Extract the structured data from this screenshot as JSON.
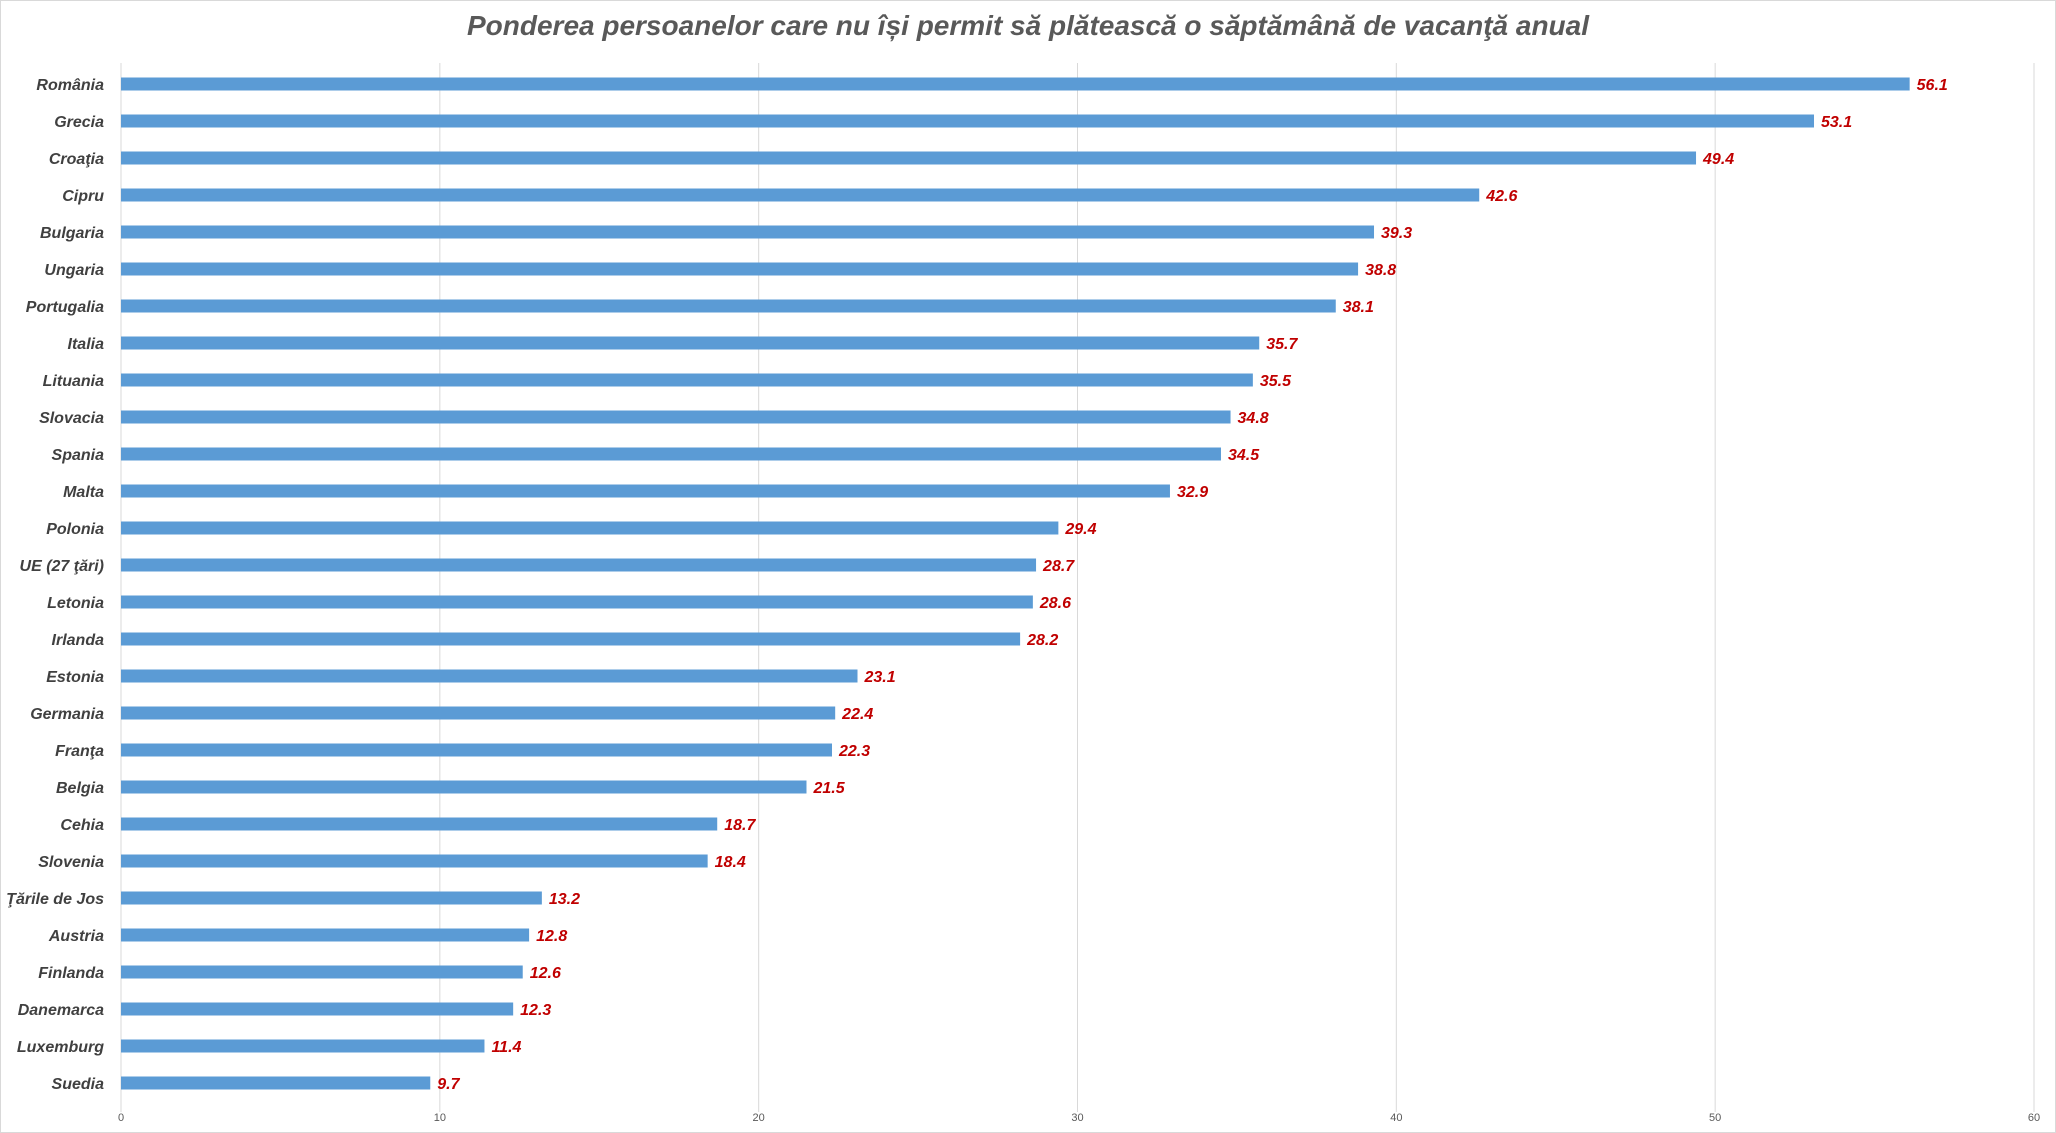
{
  "chart_data": {
    "type": "bar",
    "orientation": "horizontal",
    "title": "Ponderea persoanelor care nu își permit să plătească o săptămână de vacanţă anual",
    "xlabel": "",
    "ylabel": "",
    "xlim": [
      0,
      60
    ],
    "xticks": [
      0,
      10,
      20,
      30,
      40,
      50,
      60
    ],
    "grid": true,
    "legend": "none",
    "bar_color": "#5b9bd5",
    "label_color": "#c00000",
    "categories": [
      "România",
      "Grecia",
      "Croaţia",
      "Cipru",
      "Bulgaria",
      "Ungaria",
      "Portugalia",
      "Italia",
      "Lituania",
      "Slovacia",
      "Spania",
      "Malta",
      "Polonia",
      "UE (27 ţări)",
      "Letonia",
      "Irlanda",
      "Estonia",
      "Germania",
      "Franţa",
      "Belgia",
      "Cehia",
      "Slovenia",
      "Ţările de Jos",
      "Austria",
      "Finlanda",
      "Danemarca",
      "Luxemburg",
      "Suedia"
    ],
    "values": [
      56.1,
      53.1,
      49.4,
      42.6,
      39.3,
      38.8,
      38.1,
      35.7,
      35.5,
      34.8,
      34.5,
      32.9,
      29.4,
      28.7,
      28.6,
      28.2,
      23.1,
      22.4,
      22.3,
      21.5,
      18.7,
      18.4,
      13.2,
      12.8,
      12.6,
      12.3,
      11.4,
      9.7
    ]
  }
}
